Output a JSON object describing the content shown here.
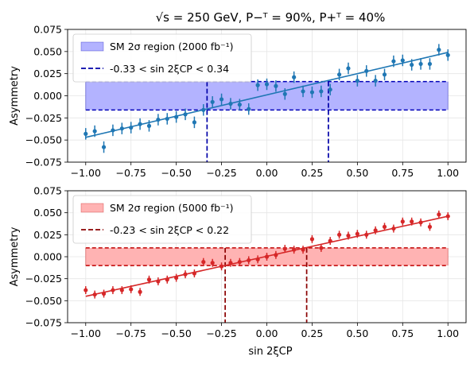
{
  "figure": {
    "title": "√s = 250 GeV,  P−ᵀ = 90%,  P+ᵀ = 40%",
    "xlabel": "sin 2ξCP"
  },
  "colors": {
    "top_series": "#1f77b4",
    "top_band_fill": "#b3b3ff",
    "top_band_edge": "#0000b8",
    "top_interval": "#0000a8",
    "bottom_series": "#d62728",
    "bottom_band_fill": "#ffb3b3",
    "bottom_band_edge": "#c00000",
    "bottom_interval": "#8b0000"
  },
  "chart_data": [
    {
      "type": "scatter",
      "panel": "top",
      "ylabel": "Asymmetry",
      "xlim": [
        -1.1,
        1.1
      ],
      "ylim": [
        -0.075,
        0.075
      ],
      "xticks": [
        "−1.00",
        "−0.75",
        "−0.50",
        "−0.25",
        "0.00",
        "0.25",
        "0.50",
        "0.75",
        "1.00"
      ],
      "xtick_values": [
        -1.0,
        -0.75,
        -0.5,
        -0.25,
        0.0,
        0.25,
        0.5,
        0.75,
        1.0
      ],
      "yticks": [
        "−0.075",
        "−0.050",
        "−0.025",
        "0.000",
        "0.025",
        "0.050",
        "0.075"
      ],
      "ytick_values": [
        -0.075,
        -0.05,
        -0.025,
        0.0,
        0.025,
        0.05,
        0.075
      ],
      "grid": true,
      "legend_position": "top-left",
      "legend": [
        "SM 2σ region (2000 fb⁻¹)",
        "-0.33 < sin 2ξCP < 0.34"
      ],
      "band": {
        "ymin": -0.016,
        "ymax": 0.016,
        "xmin": -1.0,
        "xmax": 1.0
      },
      "interval": [
        -0.33,
        0.34
      ],
      "fit_line": {
        "x": [
          -1.0,
          1.0
        ],
        "y": [
          -0.047,
          0.049
        ]
      },
      "error": 0.0065,
      "x": [
        -1.0,
        -0.95,
        -0.9,
        -0.85,
        -0.8,
        -0.75,
        -0.7,
        -0.65,
        -0.6,
        -0.55,
        -0.5,
        -0.45,
        -0.4,
        -0.35,
        -0.3,
        -0.25,
        -0.2,
        -0.15,
        -0.1,
        -0.05,
        0.0,
        0.05,
        0.1,
        0.15,
        0.2,
        0.25,
        0.3,
        0.35,
        0.4,
        0.45,
        0.5,
        0.55,
        0.6,
        0.65,
        0.7,
        0.75,
        0.8,
        0.85,
        0.9,
        0.95,
        1.0
      ],
      "y": [
        -0.043,
        -0.04,
        -0.058,
        -0.039,
        -0.037,
        -0.036,
        -0.032,
        -0.034,
        -0.027,
        -0.026,
        -0.024,
        -0.021,
        -0.03,
        -0.016,
        -0.007,
        -0.004,
        -0.009,
        -0.01,
        -0.015,
        0.012,
        0.013,
        0.011,
        0.002,
        0.021,
        0.005,
        0.004,
        0.005,
        0.007,
        0.024,
        0.031,
        0.017,
        0.028,
        0.017,
        0.024,
        0.039,
        0.04,
        0.035,
        0.036,
        0.036,
        0.052,
        0.046
      ]
    },
    {
      "type": "scatter",
      "panel": "bottom",
      "ylabel": "Asymmetry",
      "xlim": [
        -1.1,
        1.1
      ],
      "ylim": [
        -0.075,
        0.075
      ],
      "xticks": [
        "−1.00",
        "−0.75",
        "−0.50",
        "−0.25",
        "0.00",
        "0.25",
        "0.50",
        "0.75",
        "1.00"
      ],
      "xtick_values": [
        -1.0,
        -0.75,
        -0.5,
        -0.25,
        0.0,
        0.25,
        0.5,
        0.75,
        1.0
      ],
      "yticks": [
        "−0.075",
        "−0.050",
        "−0.025",
        "0.000",
        "0.025",
        "0.050",
        "0.075"
      ],
      "ytick_values": [
        -0.075,
        -0.05,
        -0.025,
        0.0,
        0.025,
        0.05,
        0.075
      ],
      "grid": true,
      "legend_position": "top-left",
      "legend": [
        "SM 2σ region (5000 fb⁻¹)",
        "-0.23 < sin 2ξCP < 0.22"
      ],
      "band": {
        "ymin": -0.01,
        "ymax": 0.01,
        "xmin": -1.0,
        "xmax": 1.0
      },
      "interval": [
        -0.23,
        0.22
      ],
      "fit_line": {
        "x": [
          -1.0,
          1.0
        ],
        "y": [
          -0.045,
          0.046
        ]
      },
      "error": 0.0045,
      "x": [
        -1.0,
        -0.95,
        -0.9,
        -0.85,
        -0.8,
        -0.75,
        -0.7,
        -0.65,
        -0.6,
        -0.55,
        -0.5,
        -0.45,
        -0.4,
        -0.35,
        -0.3,
        -0.25,
        -0.2,
        -0.15,
        -0.1,
        -0.05,
        0.0,
        0.05,
        0.1,
        0.15,
        0.2,
        0.25,
        0.3,
        0.35,
        0.4,
        0.45,
        0.5,
        0.55,
        0.6,
        0.65,
        0.7,
        0.75,
        0.8,
        0.85,
        0.9,
        0.95,
        1.0
      ],
      "y": [
        -0.038,
        -0.043,
        -0.042,
        -0.038,
        -0.038,
        -0.037,
        -0.04,
        -0.026,
        -0.028,
        -0.026,
        -0.024,
        -0.02,
        -0.019,
        -0.006,
        -0.007,
        -0.011,
        -0.007,
        -0.006,
        -0.004,
        -0.003,
        0.0,
        0.002,
        0.009,
        0.008,
        0.008,
        0.02,
        0.01,
        0.018,
        0.025,
        0.024,
        0.026,
        0.025,
        0.03,
        0.034,
        0.032,
        0.04,
        0.04,
        0.039,
        0.034,
        0.048,
        0.046
      ]
    }
  ]
}
